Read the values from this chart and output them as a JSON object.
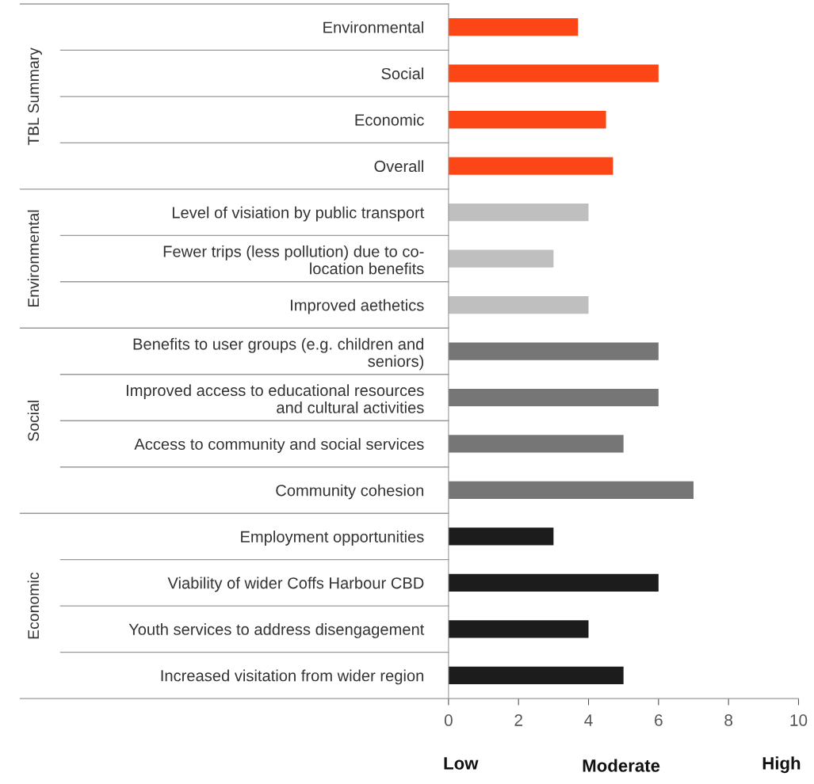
{
  "chart_data": {
    "type": "bar",
    "orientation": "horizontal",
    "categories": [
      "Environmental",
      "Social",
      "Economic",
      "Overall",
      "Level of visiation by public transport",
      "Fewer trips (less pollution) due to co-\nlocation benefits",
      "Improved aethetics",
      "Benefits to user groups (e.g. children and\nseniors)",
      "Improved access to educational resources\nand cultural activities",
      "Access to community and social services",
      "Community cohesion",
      "Employment opportunities",
      "Viability of wider Coffs Harbour CBD",
      "Youth services to address disengagement",
      "Increased visitation from wider region"
    ],
    "values": [
      3.7,
      6,
      4.5,
      4.7,
      4,
      3,
      4,
      6,
      6,
      5,
      7,
      3,
      6,
      4,
      5
    ],
    "colors": [
      "#fc4616",
      "#fc4616",
      "#fc4616",
      "#fc4616",
      "#bfbfbf",
      "#bfbfbf",
      "#bfbfbf",
      "#767676",
      "#767676",
      "#767676",
      "#767676",
      "#1c1c1c",
      "#1c1c1c",
      "#1c1c1c",
      "#1c1c1c"
    ],
    "xlim": [
      0,
      10
    ],
    "xticks": [
      0,
      2,
      4,
      6,
      8,
      10
    ],
    "grid": false,
    "annotations": [
      "TBL Summary",
      "Environmental",
      "Social",
      "Economic",
      "Low",
      "Moderate",
      "High"
    ]
  }
}
